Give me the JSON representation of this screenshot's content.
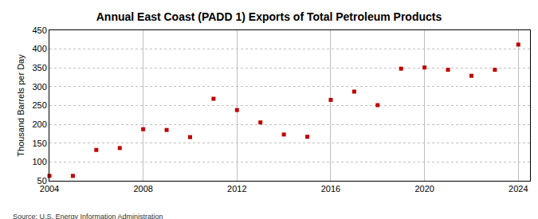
{
  "chart_data": {
    "type": "scatter",
    "title": "Annual East Coast (PADD 1) Exports of Total Petroleum Products",
    "y_label": "Thousand Barrels per Day",
    "source": "Source: U.S. Energy Information Administration",
    "x": [
      2004,
      2005,
      2006,
      2007,
      2008,
      2009,
      2010,
      2011,
      2012,
      2013,
      2014,
      2015,
      2016,
      2017,
      2018,
      2019,
      2020,
      2021,
      2022,
      2023,
      2024
    ],
    "values": [
      63,
      63,
      132,
      137,
      187,
      185,
      166,
      268,
      238,
      205,
      173,
      167,
      265,
      287,
      251,
      348,
      351,
      345,
      329,
      345,
      412
    ],
    "color": "#c00000",
    "marker": "square",
    "xlim": [
      2004,
      2024.5
    ],
    "xticks": [
      2004,
      2008,
      2012,
      2016,
      2020,
      2024
    ],
    "ylim": [
      50,
      450
    ],
    "yticks": [
      50,
      100,
      150,
      200,
      250,
      300,
      350,
      400,
      450
    ],
    "grid": true
  }
}
